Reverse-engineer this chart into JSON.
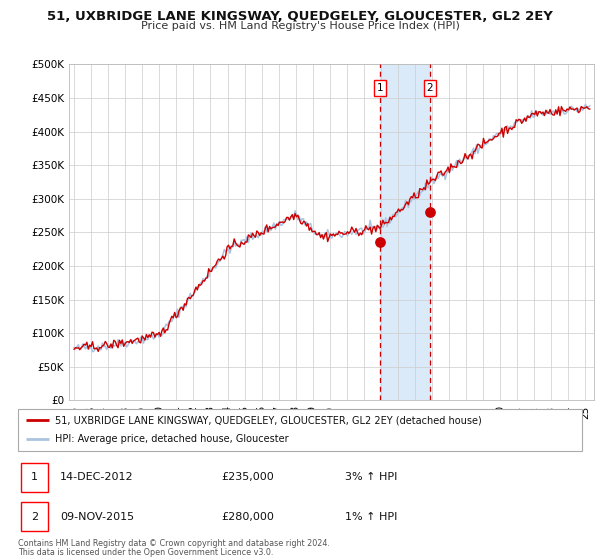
{
  "title": "51, UXBRIDGE LANE KINGSWAY, QUEDGELEY, GLOUCESTER, GL2 2EY",
  "subtitle": "Price paid vs. HM Land Registry's House Price Index (HPI)",
  "ylim": [
    0,
    500000
  ],
  "yticks": [
    0,
    50000,
    100000,
    150000,
    200000,
    250000,
    300000,
    350000,
    400000,
    450000,
    500000
  ],
  "ytick_labels": [
    "£0",
    "£50K",
    "£100K",
    "£150K",
    "£200K",
    "£250K",
    "£300K",
    "£350K",
    "£400K",
    "£450K",
    "£500K"
  ],
  "xlim_start": 1994.7,
  "xlim_end": 2025.5,
  "hpi_color": "#aac4e0",
  "price_color": "#cc0000",
  "marker_color": "#cc0000",
  "vline_color": "#cc0000",
  "highlight_fill": "#daeaf8",
  "sale1_x": 2012.95,
  "sale1_y": 235000,
  "sale2_x": 2015.86,
  "sale2_y": 280000,
  "legend_line1": "51, UXBRIDGE LANE KINGSWAY, QUEDGELEY, GLOUCESTER, GL2 2EY (detached house)",
  "legend_line2": "HPI: Average price, detached house, Gloucester",
  "table_row1_num": "1",
  "table_row1_date": "14-DEC-2012",
  "table_row1_price": "£235,000",
  "table_row1_hpi": "3% ↑ HPI",
  "table_row2_num": "2",
  "table_row2_date": "09-NOV-2015",
  "table_row2_price": "£280,000",
  "table_row2_hpi": "1% ↑ HPI",
  "footnote1": "Contains HM Land Registry data © Crown copyright and database right 2024.",
  "footnote2": "This data is licensed under the Open Government Licence v3.0.",
  "background_color": "#ffffff",
  "grid_color": "#cccccc"
}
